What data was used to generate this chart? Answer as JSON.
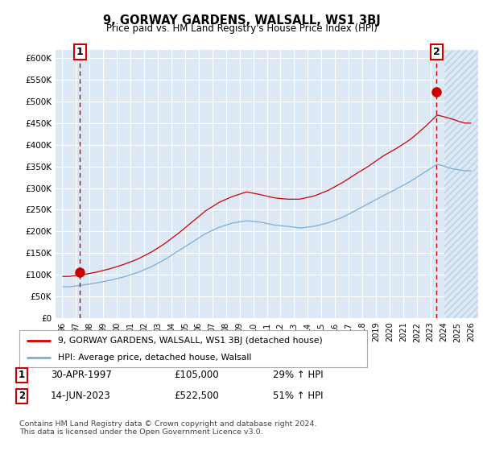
{
  "title": "9, GORWAY GARDENS, WALSALL, WS1 3BJ",
  "subtitle": "Price paid vs. HM Land Registry's House Price Index (HPI)",
  "ylim": [
    0,
    620000
  ],
  "yticks": [
    0,
    50000,
    100000,
    150000,
    200000,
    250000,
    300000,
    350000,
    400000,
    450000,
    500000,
    550000,
    600000
  ],
  "ytick_labels": [
    "£0",
    "£50K",
    "£100K",
    "£150K",
    "£200K",
    "£250K",
    "£300K",
    "£350K",
    "£400K",
    "£450K",
    "£500K",
    "£550K",
    "£600K"
  ],
  "sale1_year": 1997,
  "sale1_month": 4,
  "sale1_price": 105000,
  "sale1_label": "1",
  "sale2_year": 2023,
  "sale2_month": 6,
  "sale2_price": 522500,
  "sale2_label": "2",
  "line_color_house": "#cc0000",
  "line_color_hpi": "#7aaddb",
  "plot_bg_color": "#dce9f5",
  "background_color": "#ffffff",
  "grid_color": "#ffffff",
  "legend_label_house": "9, GORWAY GARDENS, WALSALL, WS1 3BJ (detached house)",
  "legend_label_hpi": "HPI: Average price, detached house, Walsall",
  "footer": "Contains HM Land Registry data © Crown copyright and database right 2024.\nThis data is licensed under the Open Government Licence v3.0.",
  "xlim_start": 1995.5,
  "xlim_end": 2026.5
}
